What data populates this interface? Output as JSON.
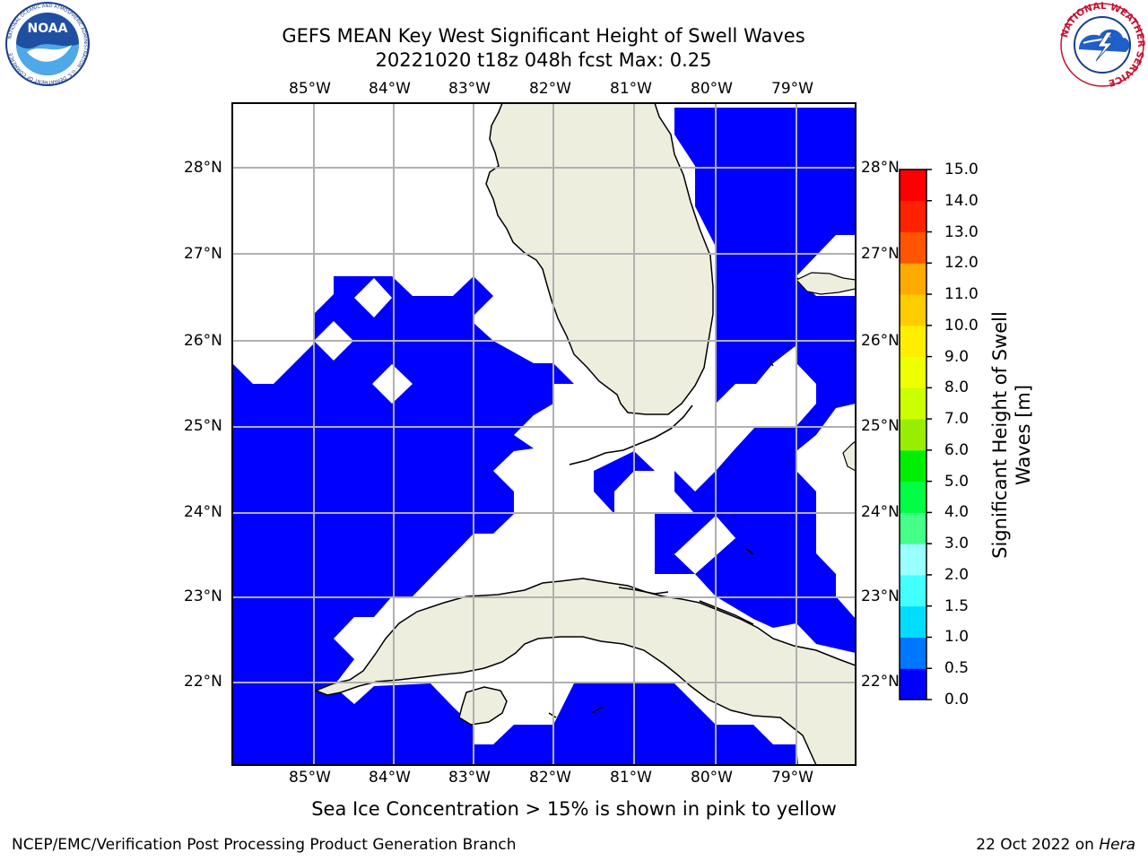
{
  "header": {
    "title_line1": "GEFS MEAN Key West Significant Height of Swell Waves",
    "title_line2": "20221020 t18z 048h fcst   Max: 0.25"
  },
  "logos": {
    "left": {
      "text": "NOAA",
      "ring_text": "NATIONAL OCEANIC AND ATMOSPHERIC ADMINISTRATION · U.S. DEPARTMENT OF COMMERCE"
    },
    "right": {
      "ring_text": "NATIONAL WEATHER SERVICE"
    }
  },
  "map": {
    "lon_labels": [
      "85°W",
      "84°W",
      "83°W",
      "82°W",
      "81°W",
      "80°W",
      "79°W"
    ],
    "lat_labels": [
      "28°N",
      "27°N",
      "26°N",
      "25°N",
      "24°N",
      "23°N",
      "22°N"
    ],
    "colors": {
      "water": "#0000ff",
      "land": "#eeeedf",
      "grid": "#b0b0b0",
      "coast": "#000000"
    },
    "swell_height_max_m": 0.25
  },
  "colorbar": {
    "title": "Significant Height of Swell Waves [m]",
    "labels": [
      "15.0",
      "14.0",
      "13.0",
      "12.0",
      "11.0",
      "10.0",
      "9.0",
      "8.0",
      "7.0",
      "6.0",
      "5.0",
      "4.0",
      "3.0",
      "2.0",
      "1.5",
      "1.0",
      "0.5",
      "0.0"
    ],
    "colors_bottom_to_top": [
      "#0000ff",
      "#0077ff",
      "#00ddff",
      "#00ffff",
      "#44ffff",
      "#99ffff",
      "#44ff88",
      "#00ff44",
      "#00ee00",
      "#55ff00",
      "#99ee00",
      "#ccff00",
      "#eeff00",
      "#ffee00",
      "#ffcc00",
      "#ffaa00",
      "#ff8800",
      "#ff5500",
      "#ff2200",
      "#ff0000"
    ]
  },
  "footer": {
    "note": "Sea Ice Concentration > 15% is shown in pink to yellow",
    "left": "NCEP/EMC/Verification Post Processing Product Generation Branch",
    "right_date": "22 Oct 2022 on ",
    "right_host": "Hera"
  }
}
